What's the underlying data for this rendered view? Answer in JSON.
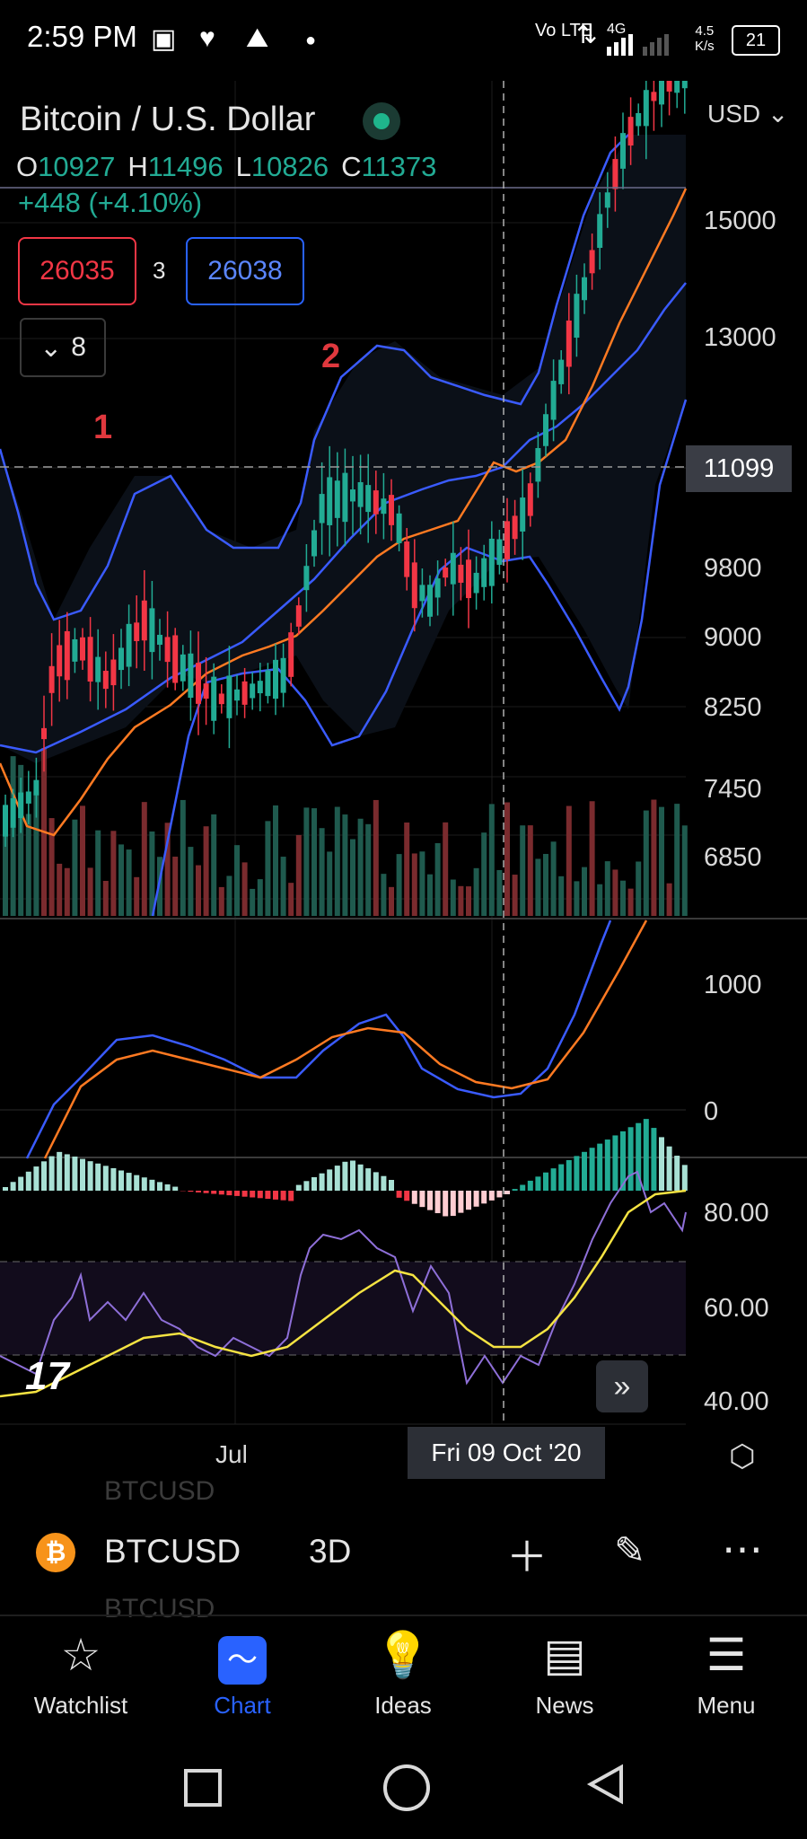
{
  "status_bar": {
    "time": "2:59 PM",
    "net_speed_top": "4.5",
    "net_speed_bottom": "K/s",
    "battery": "21",
    "volte": "Vo LTE",
    "network": "4G"
  },
  "header": {
    "title": "Bitcoin / U.S. Dollar",
    "ohlc": {
      "o_label": "O",
      "o_value": "10927",
      "h_label": "H",
      "h_value": "11496",
      "l_label": "L",
      "l_value": "10826",
      "c_label": "C",
      "c_value": "11373"
    },
    "change": "+448 (+4.10%)",
    "sell_price": "26035",
    "spread": "3",
    "buy_price": "26038",
    "indicators_count": "8",
    "marker_1": "1",
    "marker_2": "2"
  },
  "price_axis": {
    "currency": "USD",
    "labels": [
      "15000",
      "13000",
      "11099",
      "9800",
      "9000",
      "8250",
      "7450",
      "6850"
    ],
    "current_price": "11099"
  },
  "macd_axis": {
    "labels": [
      "1000",
      "0"
    ]
  },
  "rsi_axis": {
    "labels": [
      "80.00",
      "60.00",
      "40.00"
    ]
  },
  "time_axis": {
    "month_label": "Jul",
    "crosshair_date": "Fri 09 Oct '20"
  },
  "symbol_bar": {
    "symbol": "BTCUSD",
    "timeframe": "3D",
    "ghost_symbol": "BTCUSD"
  },
  "nav": {
    "items": [
      {
        "label": "Watchlist",
        "icon": "star-icon"
      },
      {
        "label": "Chart",
        "icon": "chart-icon"
      },
      {
        "label": "Ideas",
        "icon": "lightbulb-icon"
      },
      {
        "label": "News",
        "icon": "news-icon"
      },
      {
        "label": "Menu",
        "icon": "menu-icon"
      }
    ]
  },
  "colors": {
    "up": "#22ab94",
    "down": "#f23645",
    "band": "#3a5bff",
    "ma": "#ff7a22",
    "rsi": "#8e6fd8",
    "rsi_ma": "#f5e342",
    "accent": "#2962ff"
  }
}
